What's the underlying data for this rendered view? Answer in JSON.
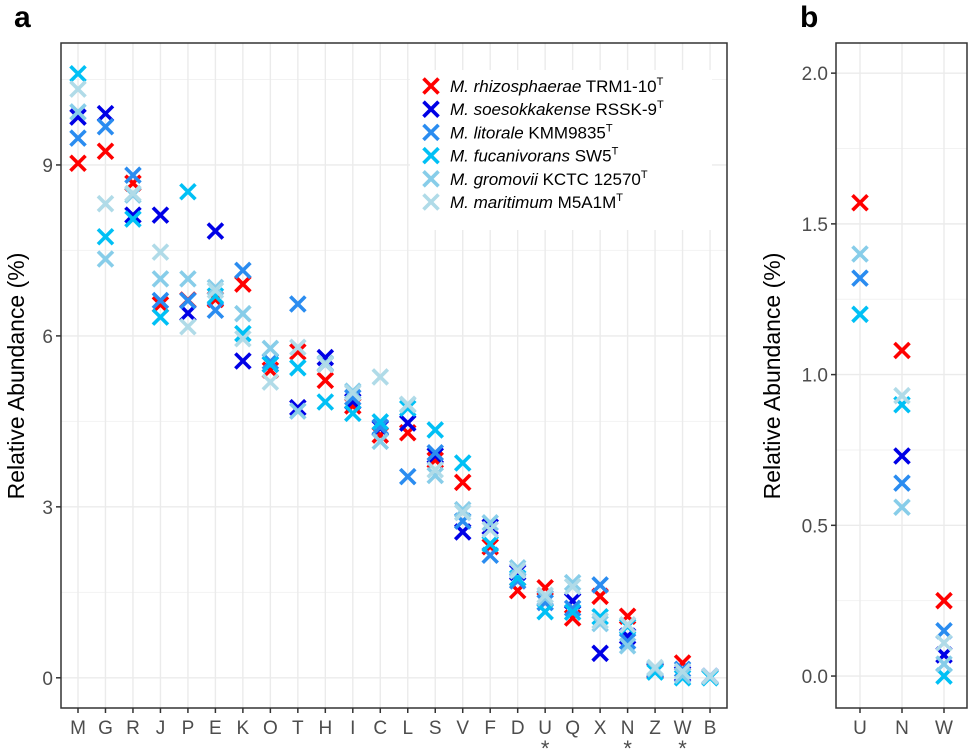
{
  "chart_data": [
    {
      "type": "scatter",
      "panel": "a",
      "title": "",
      "xlabel": "",
      "ylabel": "Relative Abundance (%)",
      "ylim": [
        -0.53,
        11.14
      ],
      "yticks": [
        0,
        3,
        6,
        9
      ],
      "grid": true,
      "legend_position": "top-right",
      "categories": [
        "M",
        "G",
        "R",
        "J",
        "P",
        "E",
        "K",
        "O",
        "T",
        "H",
        "I",
        "C",
        "L",
        "S",
        "V",
        "F",
        "D",
        "U",
        "Q",
        "X",
        "N",
        "Z",
        "W",
        "B"
      ],
      "starred_categories": [
        "U",
        "N",
        "W"
      ],
      "star_marker": "*",
      "series": [
        {
          "name": "M. rhizosphaerae TRM1-10T",
          "italic": "M. rhizosphaerae",
          "plain": " TRM1-10",
          "sup": "T",
          "color": "#ff0000",
          "values": [
            9.03,
            9.24,
            8.68,
            6.55,
            6.63,
            6.64,
            6.91,
            5.4,
            5.72,
            5.22,
            4.77,
            4.26,
            4.3,
            3.82,
            3.43,
            2.3,
            1.53,
            1.58,
            1.05,
            1.43,
            1.08,
            0.12,
            0.26,
            0.01
          ]
        },
        {
          "name": "M. soesokkakense RSSK-9T",
          "italic": "M. soesokkakense",
          "plain": " RSSK-9",
          "sup": "T",
          "color": "#0000e6",
          "values": [
            9.84,
            9.9,
            8.12,
            8.12,
            6.4,
            7.84,
            5.56,
            5.5,
            4.74,
            5.62,
            4.85,
            4.38,
            4.47,
            3.9,
            2.56,
            2.65,
            1.85,
            1.4,
            1.35,
            0.43,
            0.73,
            0.13,
            0.07,
            0.03
          ]
        },
        {
          "name": "M. litorale KMM9835T",
          "italic": "M. litorale",
          "plain": " KMM9835",
          "sup": "T",
          "color": "#2a8cf0",
          "values": [
            9.47,
            9.67,
            8.82,
            6.62,
            6.62,
            6.45,
            7.15,
            5.55,
            6.56,
            5.5,
            4.92,
            4.4,
            3.53,
            3.95,
            2.75,
            2.15,
            1.7,
            1.32,
            1.22,
            1.63,
            0.64,
            0.14,
            0.15,
            0.02
          ]
        },
        {
          "name": "M. fucanivorans SW5T",
          "italic": "M. fucanivorans",
          "plain": " SW5",
          "sup": "T",
          "color": "#00c0f5",
          "values": [
            10.6,
            7.74,
            8.05,
            6.33,
            8.53,
            6.7,
            6.04,
            5.5,
            5.44,
            4.84,
            4.64,
            4.49,
            4.73,
            4.35,
            3.77,
            2.35,
            1.75,
            1.16,
            1.15,
            1.07,
            0.9,
            0.1,
            0.0,
            0.0
          ]
        },
        {
          "name": "M. gromovii KCTC 12570T",
          "italic": "M. gromovii",
          "plain": " KCTC 12570",
          "sup": "T",
          "color": "#87cde9",
          "values": [
            9.93,
            7.35,
            8.47,
            7.0,
            7.0,
            6.85,
            6.39,
            5.78,
            4.68,
            5.52,
            5.03,
            4.15,
            4.79,
            3.55,
            2.95,
            2.72,
            1.93,
            1.4,
            1.67,
            0.95,
            0.56,
            0.16,
            0.04,
            0.02
          ]
        },
        {
          "name": "M. maritimum M5A1MT",
          "italic": "M. maritimum",
          "plain": " M5A1M",
          "sup": "T",
          "color": "#b0dbe8",
          "values": [
            10.33,
            8.32,
            8.5,
            7.47,
            6.16,
            6.8,
            5.95,
            5.19,
            5.8,
            5.5,
            5.0,
            5.28,
            4.8,
            3.65,
            2.9,
            2.6,
            1.88,
            1.45,
            1.6,
            1.0,
            0.93,
            0.18,
            0.11,
            0.03
          ]
        }
      ]
    },
    {
      "type": "scatter",
      "panel": "b",
      "title": "",
      "xlabel": "",
      "ylabel": "Relative Abundance (%)",
      "ylim": [
        -0.106,
        2.1
      ],
      "yticks": [
        "0.0",
        "0.5",
        "1.0",
        "1.5",
        "2.0"
      ],
      "ytick_values": [
        0.0,
        0.5,
        1.0,
        1.5,
        2.0
      ],
      "grid": true,
      "categories": [
        "U",
        "N",
        "W"
      ],
      "series": [
        {
          "name": "M. rhizosphaerae TRM1-10T",
          "color": "#ff0000",
          "values": [
            1.57,
            1.08,
            0.25
          ]
        },
        {
          "name": "M. soesokkakense RSSK-9T",
          "color": "#0000e6",
          "values": [
            null,
            0.73,
            0.07
          ]
        },
        {
          "name": "M. litorale KMM9835T",
          "color": "#2a8cf0",
          "values": [
            1.32,
            0.64,
            0.15
          ]
        },
        {
          "name": "M. fucanivorans SW5T",
          "color": "#00c0f5",
          "values": [
            1.2,
            0.9,
            0.0
          ]
        },
        {
          "name": "M. gromovii KCTC 12570T",
          "color": "#87cde9",
          "values": [
            1.4,
            0.56,
            0.04
          ]
        },
        {
          "name": "M. maritimum M5A1MT",
          "color": "#b0dbe8",
          "values": [
            null,
            0.93,
            0.11
          ]
        }
      ]
    }
  ],
  "panel_labels": {
    "a": "a",
    "b": "b"
  },
  "ylabel_a": "Relative Abundance (%)",
  "ylabel_b": "Relative Abundance (%)"
}
